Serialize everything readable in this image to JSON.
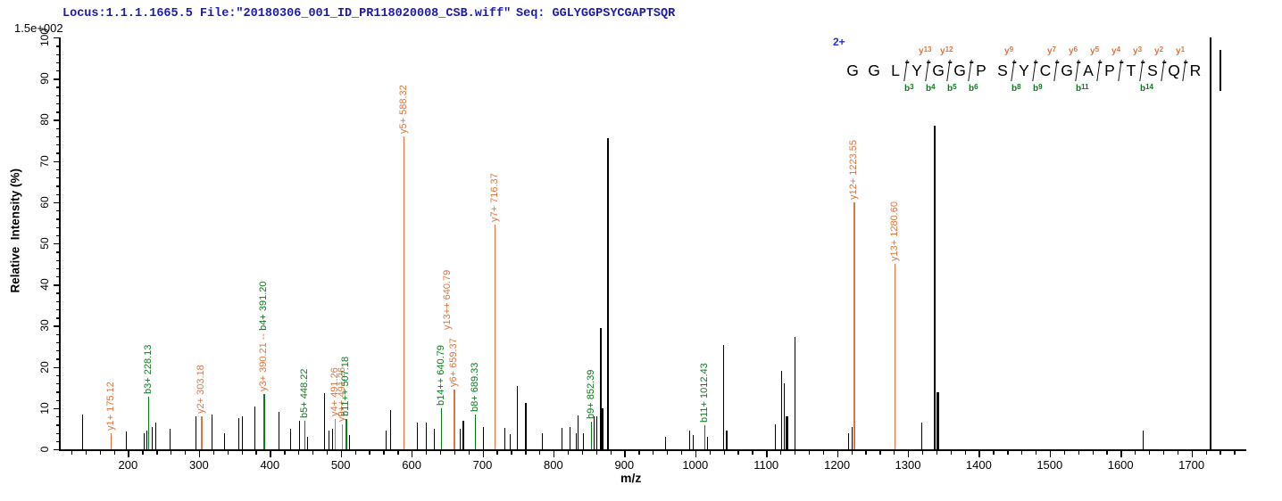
{
  "header": {
    "locus_file": "Locus:1.1.1.1665.5 File:\"20180306_001_ID_PR118020008_CSB.wiff\"",
    "seq": "Seq: GGLYGGPSYCGAPTSQR",
    "scale_note": "1.5e+002"
  },
  "peptide": {
    "charge_label": "2+",
    "residues": [
      "G",
      "G",
      "L",
      "Y",
      "G",
      "G",
      "P",
      "S",
      "Y",
      "C",
      "G",
      "A",
      "P",
      "T",
      "S",
      "Q",
      "R"
    ],
    "cuts": [
      {
        "after": 3,
        "b": "b3"
      },
      {
        "after": 4,
        "y": "y13",
        "b": "b4"
      },
      {
        "after": 5,
        "y": "y12",
        "b": "b5"
      },
      {
        "after": 6,
        "b": "b6"
      },
      {
        "after": 8,
        "y": "y9",
        "b": "b8"
      },
      {
        "after": 9,
        "b": "b9"
      },
      {
        "after": 10,
        "y": "y7"
      },
      {
        "after": 11,
        "y": "y6",
        "b": "b11"
      },
      {
        "after": 12,
        "y": "y5"
      },
      {
        "after": 13,
        "y": "y4"
      },
      {
        "after": 14,
        "y": "y3",
        "b": "b14"
      },
      {
        "after": 15,
        "y": "y2"
      },
      {
        "after": 16,
        "y": "y1"
      }
    ]
  },
  "chart_data": {
    "type": "bar",
    "subtype": "ms2-fragment-spectrum",
    "title": "",
    "xlabel": "m/z",
    "ylabel": "Relative  Intensity (%)",
    "xlim": [
      105,
      1776
    ],
    "ylim": [
      0,
      100
    ],
    "grid": false,
    "x_major_ticks": [
      200,
      300,
      400,
      500,
      600,
      700,
      800,
      900,
      1000,
      1100,
      1200,
      1300,
      1400,
      1500,
      1600,
      1700
    ],
    "x_minor_step": 20,
    "y_major_step": 10,
    "y_minor_step": 2,
    "colors": {
      "y_ion": "#DD7540",
      "b_ion": "#0E7A1E",
      "peak": "#000000",
      "header_text": "#1B1BB3",
      "charge_text": "#2233CC",
      "axis": "#000000"
    },
    "annotated_peaks": [
      {
        "label": "y1+ 175.12",
        "ion": "y",
        "mz": 175.12,
        "intensity": 3.8
      },
      {
        "label": "b3+ 228.13",
        "ion": "b",
        "mz": 228.13,
        "intensity": 12.8
      },
      {
        "label": "y2+ 303.18",
        "ion": "y",
        "mz": 303.18,
        "intensity": 8
      },
      {
        "label": "",
        "ion": "y",
        "mz": 390.21,
        "intensity": 12,
        "no_label": true
      },
      {
        "label": "y3+ 390.21 -- b4+ 391.20",
        "ion": "b",
        "mz": 391.2,
        "intensity": 13.5,
        "parts": [
          {
            "text": "y3+ 390.21 --",
            "ion": "y"
          },
          {
            "text": " b4+ 391.20",
            "ion": "b"
          }
        ]
      },
      {
        "label": "b5+ 448.22",
        "ion": "b",
        "mz": 448.22,
        "intensity": 7
      },
      {
        "label": "y4+ 491.26",
        "ion": "y",
        "mz": 491.26,
        "intensity": 7.4
      },
      {
        "label": "y9++ 491.26",
        "ion": "y",
        "mz": 491.26,
        "intensity": 6,
        "dx": 8
      },
      {
        "label": "b11++ 507.18",
        "ion": "b",
        "mz": 507.18,
        "intensity": 7.4
      },
      {
        "label": "y5+ 588.32",
        "ion": "y",
        "mz": 588.32,
        "intensity": 76
      },
      {
        "label": "b14++ 640.79",
        "ion": "b",
        "mz": 640.79,
        "intensity": 10
      },
      {
        "label": "y13++ 640.79",
        "ion": "y",
        "mz": 640.79,
        "intensity": 0,
        "dx": 7,
        "label_y": 370
      },
      {
        "label": "y6+ 659.37",
        "ion": "y",
        "mz": 659.37,
        "intensity": 14.5
      },
      {
        "label": "b8+ 689.33",
        "ion": "b",
        "mz": 689.33,
        "intensity": 8.4
      },
      {
        "label": "y7+ 716.37",
        "ion": "y",
        "mz": 716.37,
        "intensity": 54.5
      },
      {
        "label": "b9+ 852.39",
        "ion": "b",
        "mz": 852.39,
        "intensity": 6.7
      },
      {
        "label": "b11+ 1012.43",
        "ion": "b",
        "mz": 1012.43,
        "intensity": 5.8
      },
      {
        "label": "y12+ 1223.55",
        "ion": "y",
        "mz": 1223.55,
        "intensity": 60
      },
      {
        "label": "y13+ 1280.60",
        "ion": "y",
        "mz": 1280.6,
        "intensity": 45
      }
    ],
    "unannotated_peaks": [
      [
        135,
        8.5
      ],
      [
        197,
        4.3
      ],
      [
        222,
        4
      ],
      [
        226,
        4.5
      ],
      [
        234,
        5.5
      ],
      [
        239,
        6.5
      ],
      [
        259,
        5
      ],
      [
        295,
        8
      ],
      [
        318,
        8.5
      ],
      [
        335,
        4
      ],
      [
        355,
        7.5
      ],
      [
        361,
        8
      ],
      [
        378,
        10.5
      ],
      [
        412,
        9
      ],
      [
        428,
        5
      ],
      [
        441,
        7
      ],
      [
        452,
        3
      ],
      [
        477,
        13.6
      ],
      [
        483,
        4.5
      ],
      [
        488,
        5
      ],
      [
        512,
        3.5
      ],
      [
        563,
        4.5
      ],
      [
        569,
        9.5
      ],
      [
        607,
        6.5
      ],
      [
        620,
        6.5
      ],
      [
        631,
        5
      ],
      [
        668,
        5
      ],
      [
        671,
        7,
        2
      ],
      [
        700,
        5.5
      ],
      [
        731,
        5.2
      ],
      [
        738,
        3.6
      ],
      [
        749,
        15.4
      ],
      [
        760,
        11.3,
        2
      ],
      [
        784,
        4
      ],
      [
        811,
        5.2
      ],
      [
        823,
        5.5
      ],
      [
        832,
        4
      ],
      [
        834,
        8.2
      ],
      [
        841,
        4
      ],
      [
        857,
        8
      ],
      [
        861,
        8
      ],
      [
        865,
        29.5,
        2
      ],
      [
        868,
        10,
        2
      ],
      [
        876,
        75.5,
        2
      ],
      [
        958,
        3
      ],
      [
        991,
        4.5
      ],
      [
        996,
        3.5
      ],
      [
        1016,
        3
      ],
      [
        1039,
        25.3
      ],
      [
        1043,
        4.5,
        2
      ],
      [
        1112,
        6
      ],
      [
        1121,
        19
      ],
      [
        1125,
        16
      ],
      [
        1127,
        8,
        3
      ],
      [
        1140,
        27.3
      ],
      [
        1215,
        4
      ],
      [
        1220,
        5.5
      ],
      [
        1319,
        6.4
      ],
      [
        1337,
        78.5,
        2
      ],
      [
        1340,
        13.8,
        3
      ],
      [
        1631,
        4.5
      ],
      [
        1726,
        100,
        2
      ]
    ]
  }
}
